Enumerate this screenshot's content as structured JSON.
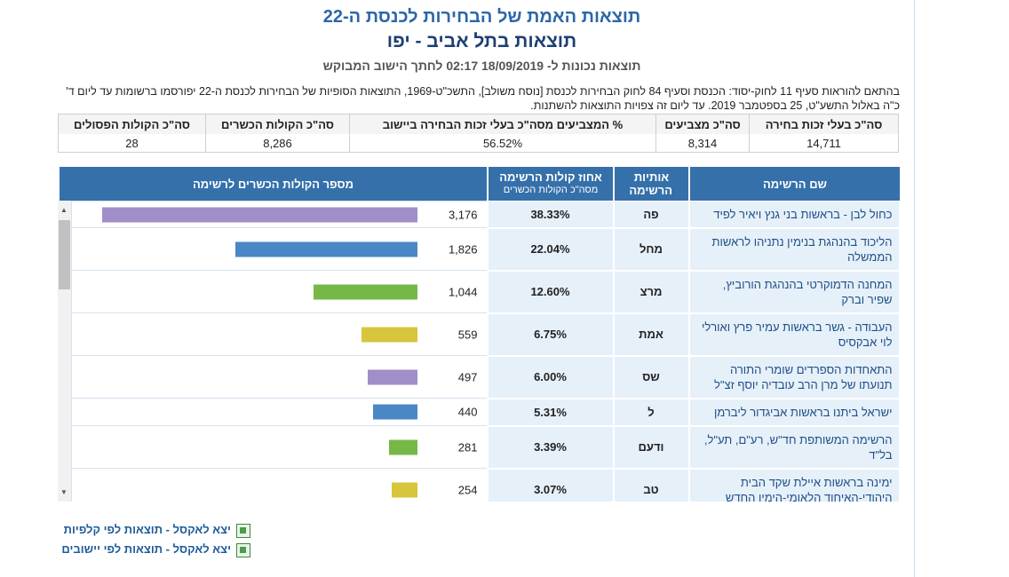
{
  "header": {
    "title": "תוצאות האמת של הבחירות לכנסת ה-22",
    "subtitle": "תוצאות בתל אביב - יפו",
    "updated": "תוצאות נכונות ל- 18/09/2019 02:17 לחתך הישוב המבוקש",
    "note": "בהתאם להוראות סעיף 11 לחוק-יסוד: הכנסת וסעיף 84 לחוק הבחירות לכנסת [נוסח משולב], התשכ\"ט-1969, התוצאות הסופיות של הבחירות לכנסת ה-22 יפורסמו ברשומות עד ליום ד' כ\"ה באלול התשע\"ט, 25 בספטמבר 2019. עד ליום זה צפויות התוצאות להשתנות."
  },
  "summary": {
    "headers": [
      "סה\"כ בעלי זכות בחירה",
      "סה\"כ מצביעים",
      "% המצביעים מסה\"כ בעלי זכות הבחירה ביישוב",
      "סה\"כ הקולות הכשרים",
      "סה\"כ הקולות הפסולים"
    ],
    "values": [
      "14,711",
      "8,314",
      "56.52%",
      "8,286",
      "28"
    ]
  },
  "results": {
    "headers": {
      "name": "שם הרשימה",
      "letters": "אותיות הרשימה",
      "percent": "אחוז קולות הרשימה",
      "percent_sub": "מסה\"כ הקולות הכשרים",
      "votes": "מספר הקולות הכשרים לרשימה"
    },
    "rows": [
      {
        "name": "כחול לבן - בראשות בני גנץ ויאיר לפיד",
        "letters": "פה",
        "percent": "38.33%",
        "votes": {
          "value": 3176,
          "label": "3,176"
        },
        "color": "#a08ec9"
      },
      {
        "name": "הליכוד בהנהגת בנימין נתניהו לראשות הממשלה",
        "letters": "מחל",
        "percent": "22.04%",
        "votes": {
          "value": 1826,
          "label": "1,826"
        },
        "color": "#4a87c6"
      },
      {
        "name": "המחנה הדמוקרטי בהנהגת הורוביץ, שפיר וברק",
        "letters": "מרצ",
        "percent": "12.60%",
        "votes": {
          "value": 1044,
          "label": "1,044"
        },
        "color": "#76b847"
      },
      {
        "name": "העבודה - גשר בראשות עמיר פרץ ואורלי לוי אבקסיס",
        "letters": "אמת",
        "percent": "6.75%",
        "votes": {
          "value": 559,
          "label": "559"
        },
        "color": "#d7c53b"
      },
      {
        "name": "התאחדות הספרדים שומרי התורה תנועתו של מרן הרב עובדיה יוסף זצ\"ל",
        "letters": "שס",
        "percent": "6.00%",
        "votes": {
          "value": 497,
          "label": "497"
        },
        "color": "#a08ec9"
      },
      {
        "name": "ישראל ביתנו בראשות אביגדור ליברמן",
        "letters": "ל",
        "percent": "5.31%",
        "votes": {
          "value": 440,
          "label": "440"
        },
        "color": "#4a87c6"
      },
      {
        "name": "הרשימה המשותפת חד\"ש, רע\"ם, תע\"ל, בל\"ד",
        "letters": "ודעם",
        "percent": "3.39%",
        "votes": {
          "value": 281,
          "label": "281"
        },
        "color": "#76b847"
      },
      {
        "name": "ימינה בראשות איילת שקד הבית היהודי-האיחוד הלאומי-הימין החדש",
        "letters": "טב",
        "percent": "3.07%",
        "votes": {
          "value": 254,
          "label": "254"
        },
        "color": "#d7c53b"
      }
    ]
  },
  "links": [
    "יצא לאקסל - תוצאות לפי קלפיות",
    "יצא לאקסל - תוצאות לפי יישובים"
  ]
}
